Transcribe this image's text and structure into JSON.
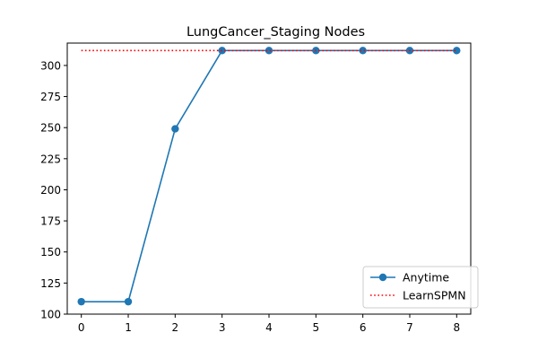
{
  "chart_data": {
    "type": "line",
    "title": "LungCancer_Staging Nodes",
    "xlabel": "",
    "ylabel": "",
    "x": [
      0,
      1,
      2,
      3,
      4,
      5,
      6,
      7,
      8
    ],
    "xticks": [
      "0",
      "1",
      "2",
      "3",
      "4",
      "5",
      "6",
      "7",
      "8"
    ],
    "yticks": [
      "100",
      "125",
      "150",
      "175",
      "200",
      "225",
      "250",
      "275",
      "300"
    ],
    "xlim": [
      -0.3,
      8.3
    ],
    "ylim": [
      100,
      318
    ],
    "grid": false,
    "legend_position": "bottom-right",
    "series": [
      {
        "name": "Anytime",
        "style": "solid-line-circle-markers",
        "color": "#1f77b4",
        "values": [
          110,
          110,
          249,
          312,
          312,
          312,
          312,
          312,
          312
        ]
      },
      {
        "name": "LearnSPMN",
        "style": "dotted-line",
        "color": "#ff0000",
        "values": [
          312,
          312,
          312,
          312,
          312,
          312,
          312,
          312,
          312
        ]
      }
    ]
  }
}
